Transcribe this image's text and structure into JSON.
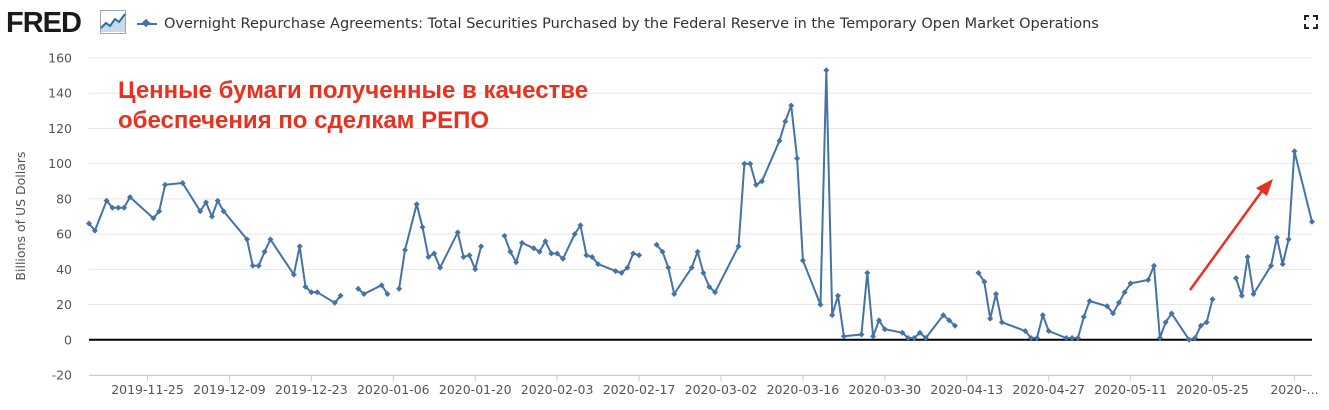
{
  "header": {
    "logo_text": "FRED",
    "logo_icon": "chart-line-icon",
    "series_title": "Overnight Repurchase Agreements: Total Securities Purchased by the Federal Reserve in the Temporary Open Market Operations",
    "fullscreen_icon": "fullscreen-icon"
  },
  "annotation": {
    "text": "Ценные бумаги полученные в качестве\nобеспечения по сделкам РЕПО",
    "color": "#e8321f",
    "arrow_color": "#e8321f"
  },
  "chart_data": {
    "type": "line",
    "ylabel": "Billions of US Dollars",
    "ylim": [
      -20,
      160
    ],
    "yticks": [
      -20,
      0,
      20,
      40,
      60,
      80,
      100,
      120,
      140,
      160
    ],
    "xlim": [
      "2019-11-15",
      "2020-06-11"
    ],
    "xticks": [
      {
        "date": "2019-11-25",
        "label": "2019-11-25"
      },
      {
        "date": "2019-12-09",
        "label": "2019-12-09"
      },
      {
        "date": "2019-12-23",
        "label": "2019-12-23"
      },
      {
        "date": "2020-01-06",
        "label": "2020-01-06"
      },
      {
        "date": "2020-01-20",
        "label": "2020-01-20"
      },
      {
        "date": "2020-02-03",
        "label": "2020-02-03"
      },
      {
        "date": "2020-02-17",
        "label": "2020-02-17"
      },
      {
        "date": "2020-03-02",
        "label": "2020-03-02"
      },
      {
        "date": "2020-03-16",
        "label": "2020-03-16"
      },
      {
        "date": "2020-03-30",
        "label": "2020-03-30"
      },
      {
        "date": "2020-04-13",
        "label": "2020-04-13"
      },
      {
        "date": "2020-04-27",
        "label": "2020-04-27"
      },
      {
        "date": "2020-05-11",
        "label": "2020-05-11"
      },
      {
        "date": "2020-05-25",
        "label": "2020-05-25"
      },
      {
        "date": "2020-06-08",
        "label": "2020-..."
      }
    ],
    "grid": true,
    "zero_line": true,
    "series": [
      {
        "color": "#4572a7",
        "segments": [
          [
            [
              "2019-11-15",
              66
            ],
            [
              "2019-11-16",
              62
            ],
            [
              "2019-11-18",
              79
            ],
            [
              "2019-11-19",
              75
            ],
            [
              "2019-11-20",
              75
            ],
            [
              "2019-11-21",
              75
            ],
            [
              "2019-11-22",
              81
            ],
            [
              "2019-11-26",
              69
            ],
            [
              "2019-11-27",
              73
            ],
            [
              "2019-11-28",
              88
            ],
            [
              "2019-12-01",
              89
            ],
            [
              "2019-12-04",
              73
            ],
            [
              "2019-12-05",
              78
            ],
            [
              "2019-12-06",
              70
            ],
            [
              "2019-12-07",
              79
            ],
            [
              "2019-12-08",
              73
            ],
            [
              "2019-12-12",
              57
            ],
            [
              "2019-12-13",
              42
            ],
            [
              "2019-12-14",
              42
            ],
            [
              "2019-12-15",
              50
            ],
            [
              "2019-12-16",
              57
            ],
            [
              "2019-12-20",
              37
            ],
            [
              "2019-12-21",
              53
            ],
            [
              "2019-12-22",
              30
            ],
            [
              "2019-12-23",
              27
            ],
            [
              "2019-12-24",
              27
            ],
            [
              "2019-12-27",
              21
            ],
            [
              "2019-12-28",
              25
            ]
          ],
          [
            [
              "2019-12-31",
              29
            ],
            [
              "2020-01-01",
              26
            ],
            [
              "2020-01-04",
              31
            ],
            [
              "2020-01-05",
              26
            ]
          ],
          [
            [
              "2020-01-07",
              29
            ],
            [
              "2020-01-08",
              51
            ],
            [
              "2020-01-10",
              77
            ],
            [
              "2020-01-11",
              64
            ],
            [
              "2020-01-12",
              47
            ],
            [
              "2020-01-13",
              49
            ],
            [
              "2020-01-14",
              41
            ],
            [
              "2020-01-17",
              61
            ],
            [
              "2020-01-18",
              47
            ],
            [
              "2020-01-19",
              48
            ],
            [
              "2020-01-20",
              40
            ],
            [
              "2020-01-21",
              53
            ]
          ],
          [
            [
              "2020-01-25",
              59
            ],
            [
              "2020-01-26",
              50
            ],
            [
              "2020-01-27",
              44
            ],
            [
              "2020-01-28",
              55
            ],
            [
              "2020-01-30",
              52
            ],
            [
              "2020-01-31",
              50
            ],
            [
              "2020-02-01",
              56
            ],
            [
              "2020-02-02",
              49
            ],
            [
              "2020-02-03",
              49
            ],
            [
              "2020-02-04",
              46
            ],
            [
              "2020-02-06",
              60
            ],
            [
              "2020-02-07",
              65
            ],
            [
              "2020-02-08",
              48
            ],
            [
              "2020-02-09",
              47
            ],
            [
              "2020-02-10",
              43
            ],
            [
              "2020-02-13",
              39
            ],
            [
              "2020-02-14",
              38
            ],
            [
              "2020-02-15",
              41
            ],
            [
              "2020-02-16",
              49
            ],
            [
              "2020-02-17",
              48
            ]
          ],
          [
            [
              "2020-02-20",
              54
            ],
            [
              "2020-02-21",
              50
            ],
            [
              "2020-02-22",
              41
            ],
            [
              "2020-02-23",
              26
            ],
            [
              "2020-02-26",
              41
            ],
            [
              "2020-02-27",
              50
            ],
            [
              "2020-02-28",
              38
            ],
            [
              "2020-02-29",
              30
            ],
            [
              "2020-03-01",
              27
            ],
            [
              "2020-03-05",
              53
            ],
            [
              "2020-03-06",
              100
            ],
            [
              "2020-03-07",
              100
            ],
            [
              "2020-03-08",
              88
            ],
            [
              "2020-03-09",
              90
            ],
            [
              "2020-03-12",
              113
            ],
            [
              "2020-03-13",
              124
            ],
            [
              "2020-03-14",
              133
            ],
            [
              "2020-03-15",
              103
            ],
            [
              "2020-03-16",
              45
            ],
            [
              "2020-03-19",
              20
            ],
            [
              "2020-03-20",
              153
            ],
            [
              "2020-03-21",
              14
            ],
            [
              "2020-03-22",
              25
            ],
            [
              "2020-03-23",
              2
            ],
            [
              "2020-03-26",
              3
            ],
            [
              "2020-03-27",
              38
            ],
            [
              "2020-03-28",
              2
            ],
            [
              "2020-03-29",
              11
            ],
            [
              "2020-03-30",
              6
            ],
            [
              "2020-04-02",
              4
            ],
            [
              "2020-04-03",
              1
            ],
            [
              "2020-04-04",
              1
            ],
            [
              "2020-04-05",
              4
            ],
            [
              "2020-04-06",
              1
            ],
            [
              "2020-04-09",
              14
            ],
            [
              "2020-04-10",
              11
            ],
            [
              "2020-04-11",
              8
            ]
          ],
          [
            [
              "2020-04-15",
              38
            ],
            [
              "2020-04-16",
              33
            ],
            [
              "2020-04-17",
              12
            ],
            [
              "2020-04-18",
              26
            ],
            [
              "2020-04-19",
              10
            ],
            [
              "2020-04-23",
              5
            ],
            [
              "2020-04-24",
              1
            ],
            [
              "2020-04-25",
              1
            ],
            [
              "2020-04-26",
              14
            ],
            [
              "2020-04-27",
              5
            ],
            [
              "2020-04-30",
              1
            ],
            [
              "2020-05-01",
              1
            ],
            [
              "2020-05-02",
              1
            ],
            [
              "2020-05-03",
              13
            ],
            [
              "2020-05-04",
              22
            ],
            [
              "2020-05-07",
              19
            ],
            [
              "2020-05-08",
              15
            ],
            [
              "2020-05-09",
              21
            ],
            [
              "2020-05-10",
              27
            ],
            [
              "2020-05-11",
              32
            ],
            [
              "2020-05-14",
              34
            ],
            [
              "2020-05-15",
              42
            ],
            [
              "2020-05-16",
              1
            ],
            [
              "2020-05-17",
              10
            ],
            [
              "2020-05-18",
              15
            ],
            [
              "2020-05-21",
              0
            ],
            [
              "2020-05-22",
              1
            ],
            [
              "2020-05-23",
              8
            ],
            [
              "2020-05-24",
              10
            ],
            [
              "2020-05-25",
              23
            ]
          ],
          [
            [
              "2020-05-29",
              35
            ],
            [
              "2020-05-30",
              25
            ],
            [
              "2020-05-31",
              47
            ],
            [
              "2020-06-01",
              26
            ],
            [
              "2020-06-04",
              42
            ],
            [
              "2020-06-05",
              58
            ],
            [
              "2020-06-06",
              43
            ],
            [
              "2020-06-07",
              57
            ],
            [
              "2020-06-08",
              107
            ],
            [
              "2020-06-11",
              67
            ]
          ]
        ]
      }
    ]
  }
}
